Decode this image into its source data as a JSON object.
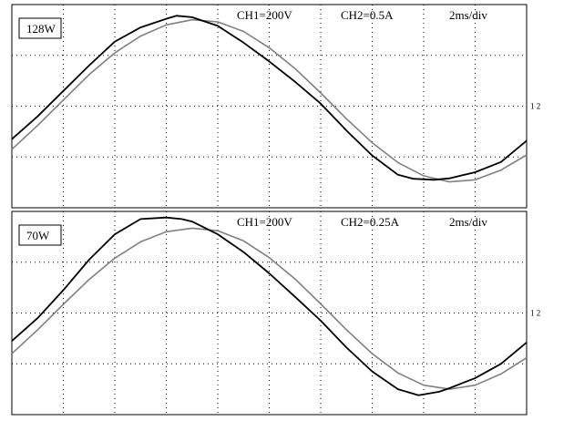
{
  "chart_data": [
    {
      "type": "line",
      "label": "128W",
      "settings": {
        "ch1": "CH1=200V",
        "ch2": "CH2=0.5A",
        "timebase": "2ms/div"
      },
      "ground_marker": "1 2",
      "x_divisions": 10,
      "y_divisions": 4,
      "grid": true,
      "series": [
        {
          "channel": "CH1",
          "color": "#808080",
          "x": [
            0,
            0.5,
            1,
            1.5,
            2,
            2.5,
            3,
            3.5,
            4,
            4.5,
            5,
            5.5,
            6,
            6.5,
            7,
            7.5,
            8,
            8.5,
            9,
            9.5,
            10
          ],
          "y": [
            -0.85,
            -0.38,
            0.12,
            0.62,
            1.05,
            1.38,
            1.6,
            1.7,
            1.66,
            1.47,
            1.15,
            0.74,
            0.26,
            -0.25,
            -0.72,
            -1.11,
            -1.37,
            -1.49,
            -1.45,
            -1.26,
            -0.96
          ]
        },
        {
          "channel": "CH2",
          "color": "#000000",
          "x": [
            0,
            0.5,
            1,
            1.5,
            2,
            2.5,
            3,
            3.2,
            3.5,
            4,
            4.5,
            5,
            5.5,
            6,
            6.5,
            7,
            7.5,
            7.8,
            8.2,
            8.5,
            9,
            9.5,
            10
          ],
          "y": [
            -0.65,
            -0.2,
            0.3,
            0.8,
            1.27,
            1.55,
            1.72,
            1.78,
            1.75,
            1.58,
            1.25,
            0.88,
            0.48,
            0.05,
            -0.48,
            -0.97,
            -1.35,
            -1.43,
            -1.45,
            -1.42,
            -1.3,
            -1.1,
            -0.68
          ]
        }
      ]
    },
    {
      "type": "line",
      "label": "70W",
      "settings": {
        "ch1": "CH1=200V",
        "ch2": "CH2=0.25A",
        "timebase": "2ms/div"
      },
      "ground_marker": "1 2",
      "x_divisions": 10,
      "y_divisions": 4,
      "grid": true,
      "series": [
        {
          "channel": "CH1",
          "color": "#808080",
          "x": [
            0,
            0.5,
            1,
            1.5,
            2,
            2.5,
            3,
            3.5,
            4,
            4.5,
            5,
            5.5,
            6,
            6.5,
            7,
            7.5,
            8,
            8.5,
            9,
            9.5,
            10
          ],
          "y": [
            -0.8,
            -0.33,
            0.17,
            0.66,
            1.08,
            1.4,
            1.6,
            1.67,
            1.62,
            1.42,
            1.09,
            0.67,
            0.18,
            -0.33,
            -0.8,
            -1.18,
            -1.42,
            -1.5,
            -1.42,
            -1.2,
            -0.88
          ]
        },
        {
          "channel": "CH2",
          "color": "#000000",
          "x": [
            0,
            0.5,
            1,
            1.5,
            2,
            2.5,
            3,
            3.3,
            3.5,
            4,
            4.5,
            5,
            5.5,
            6,
            6.5,
            7,
            7.5,
            7.9,
            8.3,
            8.5,
            9,
            9.5,
            10
          ],
          "y": [
            -0.55,
            -0.1,
            0.45,
            1.05,
            1.55,
            1.85,
            1.88,
            1.85,
            1.8,
            1.55,
            1.2,
            0.78,
            0.32,
            -0.15,
            -0.68,
            -1.15,
            -1.5,
            -1.62,
            -1.55,
            -1.48,
            -1.28,
            -1.0,
            -0.58
          ]
        }
      ]
    }
  ]
}
